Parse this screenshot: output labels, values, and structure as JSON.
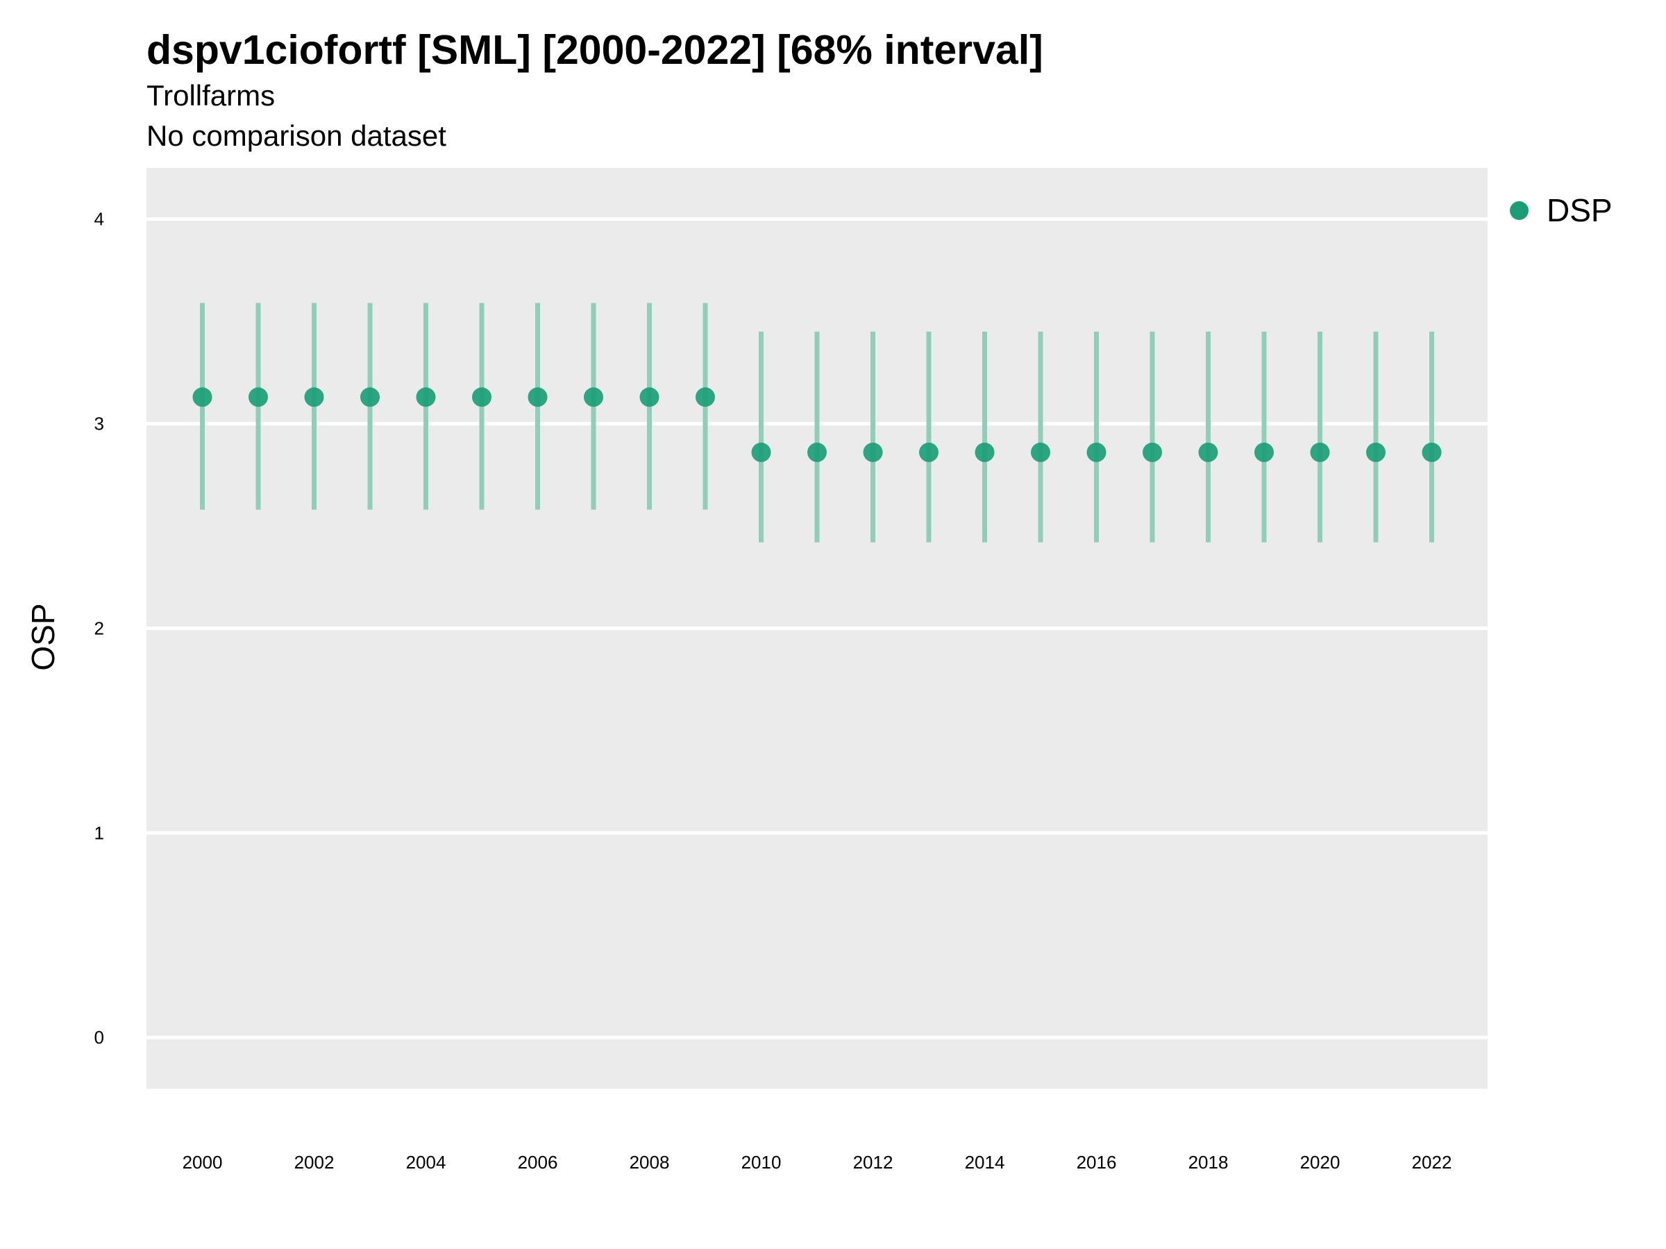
{
  "chart_data": {
    "type": "scatter",
    "title": "dspv1ciofortf [SML] [2000-2022] [68% interval]",
    "subtitle": "Trollfarms",
    "subtitle2": "No comparison dataset",
    "xlabel": "",
    "ylabel": "OSP",
    "xlim": [
      1999,
      2023
    ],
    "ylim": [
      -0.25,
      4.25
    ],
    "x_ticks": [
      2000,
      2002,
      2004,
      2006,
      2008,
      2010,
      2012,
      2014,
      2016,
      2018,
      2020,
      2022
    ],
    "y_ticks": [
      0,
      1,
      2,
      3,
      4
    ],
    "grid": true,
    "legend_position": "right",
    "series": [
      {
        "name": "DSP",
        "color": "#1b9e77",
        "points": [
          {
            "x": 2000,
            "y": 3.13,
            "lower": 2.58,
            "upper": 3.59
          },
          {
            "x": 2001,
            "y": 3.13,
            "lower": 2.58,
            "upper": 3.59
          },
          {
            "x": 2002,
            "y": 3.13,
            "lower": 2.58,
            "upper": 3.59
          },
          {
            "x": 2003,
            "y": 3.13,
            "lower": 2.58,
            "upper": 3.59
          },
          {
            "x": 2004,
            "y": 3.13,
            "lower": 2.58,
            "upper": 3.59
          },
          {
            "x": 2005,
            "y": 3.13,
            "lower": 2.58,
            "upper": 3.59
          },
          {
            "x": 2006,
            "y": 3.13,
            "lower": 2.58,
            "upper": 3.59
          },
          {
            "x": 2007,
            "y": 3.13,
            "lower": 2.58,
            "upper": 3.59
          },
          {
            "x": 2008,
            "y": 3.13,
            "lower": 2.58,
            "upper": 3.59
          },
          {
            "x": 2009,
            "y": 3.13,
            "lower": 2.58,
            "upper": 3.59
          },
          {
            "x": 2010,
            "y": 2.86,
            "lower": 2.42,
            "upper": 3.45
          },
          {
            "x": 2011,
            "y": 2.86,
            "lower": 2.42,
            "upper": 3.45
          },
          {
            "x": 2012,
            "y": 2.86,
            "lower": 2.42,
            "upper": 3.45
          },
          {
            "x": 2013,
            "y": 2.86,
            "lower": 2.42,
            "upper": 3.45
          },
          {
            "x": 2014,
            "y": 2.86,
            "lower": 2.42,
            "upper": 3.45
          },
          {
            "x": 2015,
            "y": 2.86,
            "lower": 2.42,
            "upper": 3.45
          },
          {
            "x": 2016,
            "y": 2.86,
            "lower": 2.42,
            "upper": 3.45
          },
          {
            "x": 2017,
            "y": 2.86,
            "lower": 2.42,
            "upper": 3.45
          },
          {
            "x": 2018,
            "y": 2.86,
            "lower": 2.42,
            "upper": 3.45
          },
          {
            "x": 2019,
            "y": 2.86,
            "lower": 2.42,
            "upper": 3.45
          },
          {
            "x": 2020,
            "y": 2.86,
            "lower": 2.42,
            "upper": 3.45
          },
          {
            "x": 2021,
            "y": 2.86,
            "lower": 2.42,
            "upper": 3.45
          },
          {
            "x": 2022,
            "y": 2.86,
            "lower": 2.42,
            "upper": 3.45
          }
        ]
      }
    ],
    "colors": {
      "panel_background": "#ebebeb",
      "grid": "#ffffff",
      "point": "#1b9e77",
      "interval": "#8fcfba"
    }
  }
}
